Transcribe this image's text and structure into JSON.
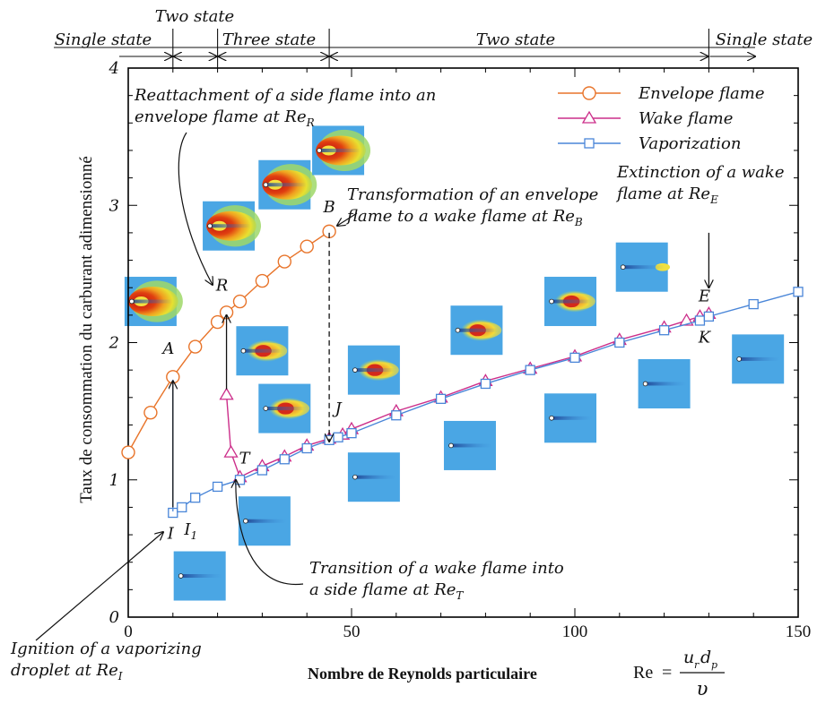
{
  "chart_data": {
    "type": "line",
    "xlabel": "Nombre de Reynolds particulaire",
    "formula": {
      "lhs": "Re",
      "eq": "=",
      "num_u": "u",
      "num_u_sub": "r",
      "num_d": "d",
      "num_d_sub": "p",
      "den": "υ"
    },
    "ylabel": "Taux de consommation du carburant adimensionné",
    "xlim": [
      0,
      150
    ],
    "ylim": [
      0,
      4
    ],
    "x_ticks": [
      "0",
      "50",
      "100",
      "150"
    ],
    "y_ticks": [
      "0",
      "1",
      "2",
      "3",
      "4"
    ],
    "grid": false,
    "legend_position": "top-right",
    "regimes": [
      {
        "label": "Single state",
        "from": 0,
        "to": 10
      },
      {
        "label": "Two state",
        "from": 10,
        "to": 20
      },
      {
        "label": "Three state",
        "from": 20,
        "to": 45
      },
      {
        "label": "Two state",
        "from": 45,
        "to": 130
      },
      {
        "label": "Single state",
        "from": 130,
        "to": 150
      }
    ],
    "series": [
      {
        "name": "Envelope flame",
        "marker": "circle",
        "color": "#e8742a",
        "x": [
          0,
          5,
          10,
          15,
          20,
          22,
          25,
          30,
          35,
          40,
          45
        ],
        "y": [
          1.2,
          1.49,
          1.75,
          1.97,
          2.15,
          2.22,
          2.3,
          2.45,
          2.59,
          2.7,
          2.81
        ]
      },
      {
        "name": "Wake flame",
        "marker": "triangle",
        "color": "#cc2e8a",
        "x": [
          22,
          23,
          25,
          30,
          35,
          40,
          45,
          48,
          50,
          60,
          70,
          80,
          90,
          100,
          110,
          120,
          125,
          128,
          130
        ],
        "y": [
          1.62,
          1.2,
          1.02,
          1.1,
          1.17,
          1.25,
          1.3,
          1.33,
          1.37,
          1.5,
          1.6,
          1.72,
          1.81,
          1.9,
          2.02,
          2.11,
          2.16,
          2.19,
          2.21
        ]
      },
      {
        "name": "Vaporization",
        "marker": "square",
        "color": "#4a86d8",
        "x": [
          10,
          12,
          15,
          20,
          25,
          30,
          35,
          40,
          45,
          47,
          50,
          60,
          70,
          80,
          90,
          100,
          110,
          120,
          128,
          130,
          140,
          150
        ],
        "y": [
          0.76,
          0.8,
          0.87,
          0.95,
          1.0,
          1.07,
          1.15,
          1.23,
          1.29,
          1.31,
          1.34,
          1.47,
          1.59,
          1.7,
          1.8,
          1.89,
          2.0,
          2.09,
          2.16,
          2.19,
          2.28,
          2.37
        ]
      }
    ],
    "jumps": [
      {
        "kind": "ignition",
        "x": 10,
        "y_from": 0.8,
        "y_to": 1.72,
        "style": "solid"
      },
      {
        "kind": "reattachment",
        "x": 22,
        "y_from": 1.66,
        "y_to": 2.2,
        "style": "solid"
      },
      {
        "kind": "transformation",
        "x": 45,
        "y_from": 2.8,
        "y_to": 1.28,
        "style": "dashed"
      },
      {
        "kind": "extinction",
        "x": 130,
        "y_from": 2.8,
        "y_to": 2.4,
        "style": "solid"
      }
    ],
    "point_labels": [
      {
        "text": "A",
        "x": 9,
        "y": 1.92
      },
      {
        "text": "R",
        "x": 21,
        "y": 2.38
      },
      {
        "text": "B",
        "x": 45,
        "y": 2.95
      },
      {
        "text": "T",
        "x": 26,
        "y": 1.12
      },
      {
        "text": "J",
        "x": 47,
        "y": 1.48
      },
      {
        "text": "E",
        "x": 129,
        "y": 2.3
      },
      {
        "text": "K",
        "x": 129,
        "y": 2.0
      },
      {
        "text": "I",
        "x": 9.5,
        "y": 0.57
      },
      {
        "text": "I",
        "sub": "1",
        "x": 14,
        "y": 0.6
      }
    ],
    "annotations": [
      {
        "lines": [
          "Reattachment of a side flame into an",
          "envelope flame at Re"
        ],
        "sub": "R"
      },
      {
        "lines": [
          "Transformation of an envelope",
          "flame to a wake flame at Re"
        ],
        "sub": "B"
      },
      {
        "lines": [
          "Extinction of a wake",
          "flame at Re"
        ],
        "sub": "E"
      },
      {
        "lines": [
          "Transition of a wake flame into",
          "a side flame at Re"
        ],
        "sub": "T"
      },
      {
        "lines": [
          "Ignition of a vaporizing",
          "droplet at Re"
        ],
        "sub": "I"
      }
    ],
    "flame_insets": [
      {
        "kind": "envelope",
        "x": 5,
        "y": 2.3
      },
      {
        "kind": "envelope",
        "x": 22.5,
        "y": 2.85
      },
      {
        "kind": "envelope",
        "x": 35,
        "y": 3.15
      },
      {
        "kind": "envelope",
        "x": 47,
        "y": 3.4
      },
      {
        "kind": "wake",
        "x": 30,
        "y": 1.94
      },
      {
        "kind": "wake",
        "x": 35,
        "y": 1.52
      },
      {
        "kind": "wake",
        "x": 55,
        "y": 1.8
      },
      {
        "kind": "wake",
        "x": 78,
        "y": 2.09
      },
      {
        "kind": "wake",
        "x": 99,
        "y": 2.3
      },
      {
        "kind": "extinct",
        "x": 115,
        "y": 2.55
      },
      {
        "kind": "vaporization",
        "x": 16,
        "y": 0.3
      },
      {
        "kind": "vaporization",
        "x": 30.5,
        "y": 0.7
      },
      {
        "kind": "vaporization",
        "x": 55,
        "y": 1.02
      },
      {
        "kind": "vaporization",
        "x": 76.5,
        "y": 1.25
      },
      {
        "kind": "vaporization",
        "x": 99,
        "y": 1.45
      },
      {
        "kind": "vaporization",
        "x": 120,
        "y": 1.7
      },
      {
        "kind": "vaporization",
        "x": 141,
        "y": 1.88
      }
    ]
  }
}
